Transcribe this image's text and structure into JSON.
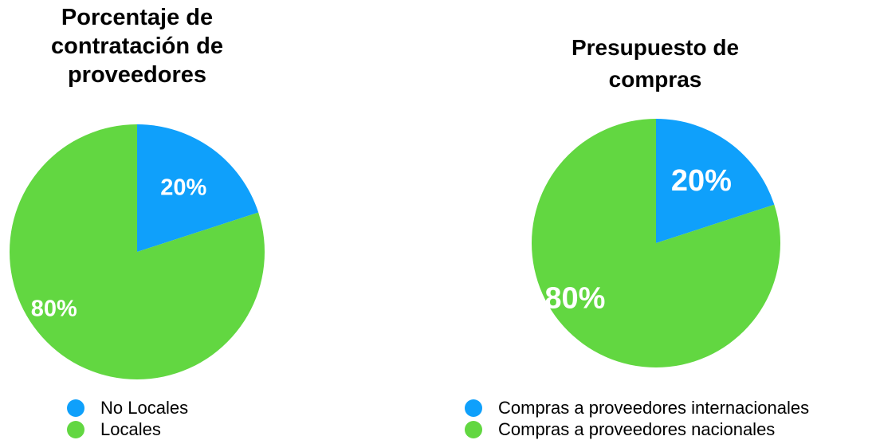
{
  "colors": {
    "blue": "#0fa0fb",
    "green": "#62d741",
    "label": "#ffffff"
  },
  "chart_data": [
    {
      "type": "pie",
      "title": "Porcentaje de contratación de proveedores",
      "title_lines": [
        "Porcentaje de",
        "contratación de",
        "proveedores"
      ],
      "categories": [
        "No Locales",
        "Locales"
      ],
      "values": [
        20,
        80
      ],
      "data_labels": [
        "20%",
        "80%"
      ],
      "colors": [
        "#0fa0fb",
        "#62d741"
      ],
      "start_angle": "12 o'clock",
      "direction": "clockwise",
      "legend_position": "bottom"
    },
    {
      "type": "pie",
      "title": "Presupuesto de compras",
      "title_lines": [
        "Presupuesto de",
        "compras"
      ],
      "categories": [
        "Compras a proveedores internacionales",
        "Compras a proveedores nacionales"
      ],
      "values": [
        20,
        80
      ],
      "data_labels": [
        "20%",
        "80%"
      ],
      "colors": [
        "#0fa0fb",
        "#62d741"
      ],
      "start_angle": "12 o'clock",
      "direction": "clockwise",
      "legend_position": "bottom"
    }
  ]
}
